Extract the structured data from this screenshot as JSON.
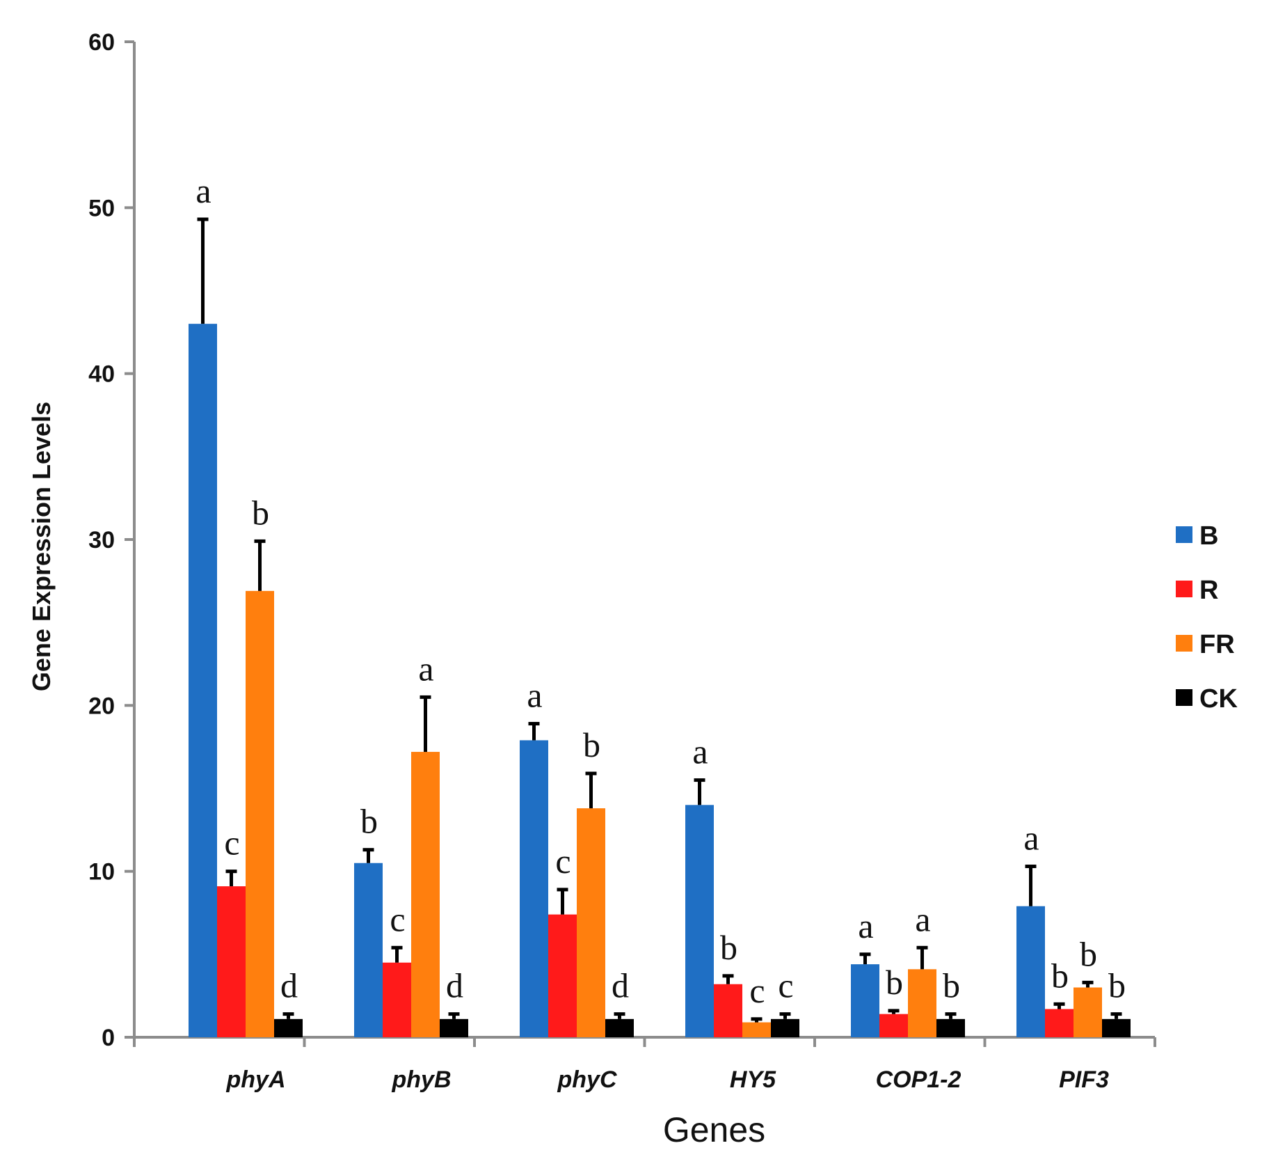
{
  "chart_data": {
    "type": "bar",
    "title": "",
    "xlabel": "Genes",
    "ylabel": "Gene Expression Levels",
    "ylim": [
      0,
      60
    ],
    "yticks": [
      0,
      10,
      20,
      30,
      40,
      50,
      60
    ],
    "categories": [
      "phyA",
      "phyB",
      "phyC",
      "HY5",
      "COP1-2",
      "PIF3"
    ],
    "series": [
      {
        "name": "B",
        "color": "#1f6fc4",
        "values": [
          43.0,
          10.5,
          17.9,
          14.0,
          4.4,
          7.9
        ],
        "errors": [
          6.3,
          0.8,
          1.0,
          1.5,
          0.6,
          2.4
        ],
        "letters": [
          "a",
          "b",
          "a",
          "a",
          "a",
          "a"
        ]
      },
      {
        "name": "R",
        "color": "#ff1a1a",
        "values": [
          9.1,
          4.5,
          7.4,
          3.2,
          1.4,
          1.7
        ],
        "errors": [
          0.9,
          0.9,
          1.5,
          0.5,
          0.2,
          0.3
        ],
        "letters": [
          "c",
          "c",
          "c",
          "b",
          "b",
          "b"
        ]
      },
      {
        "name": "FR",
        "color": "#ff7f0e",
        "values": [
          26.9,
          17.2,
          13.8,
          0.9,
          4.1,
          3.0
        ],
        "errors": [
          3.0,
          3.3,
          2.1,
          0.2,
          1.3,
          0.3
        ],
        "letters": [
          "b",
          "a",
          "b",
          "c",
          "a",
          "b"
        ]
      },
      {
        "name": "CK",
        "color": "#000000",
        "values": [
          1.1,
          1.1,
          1.1,
          1.1,
          1.1,
          1.1
        ],
        "errors": [
          0.3,
          0.3,
          0.3,
          0.3,
          0.3,
          0.3
        ],
        "letters": [
          "d",
          "d",
          "d",
          "c",
          "b",
          "b"
        ]
      }
    ],
    "legend": "right",
    "grid": false
  }
}
